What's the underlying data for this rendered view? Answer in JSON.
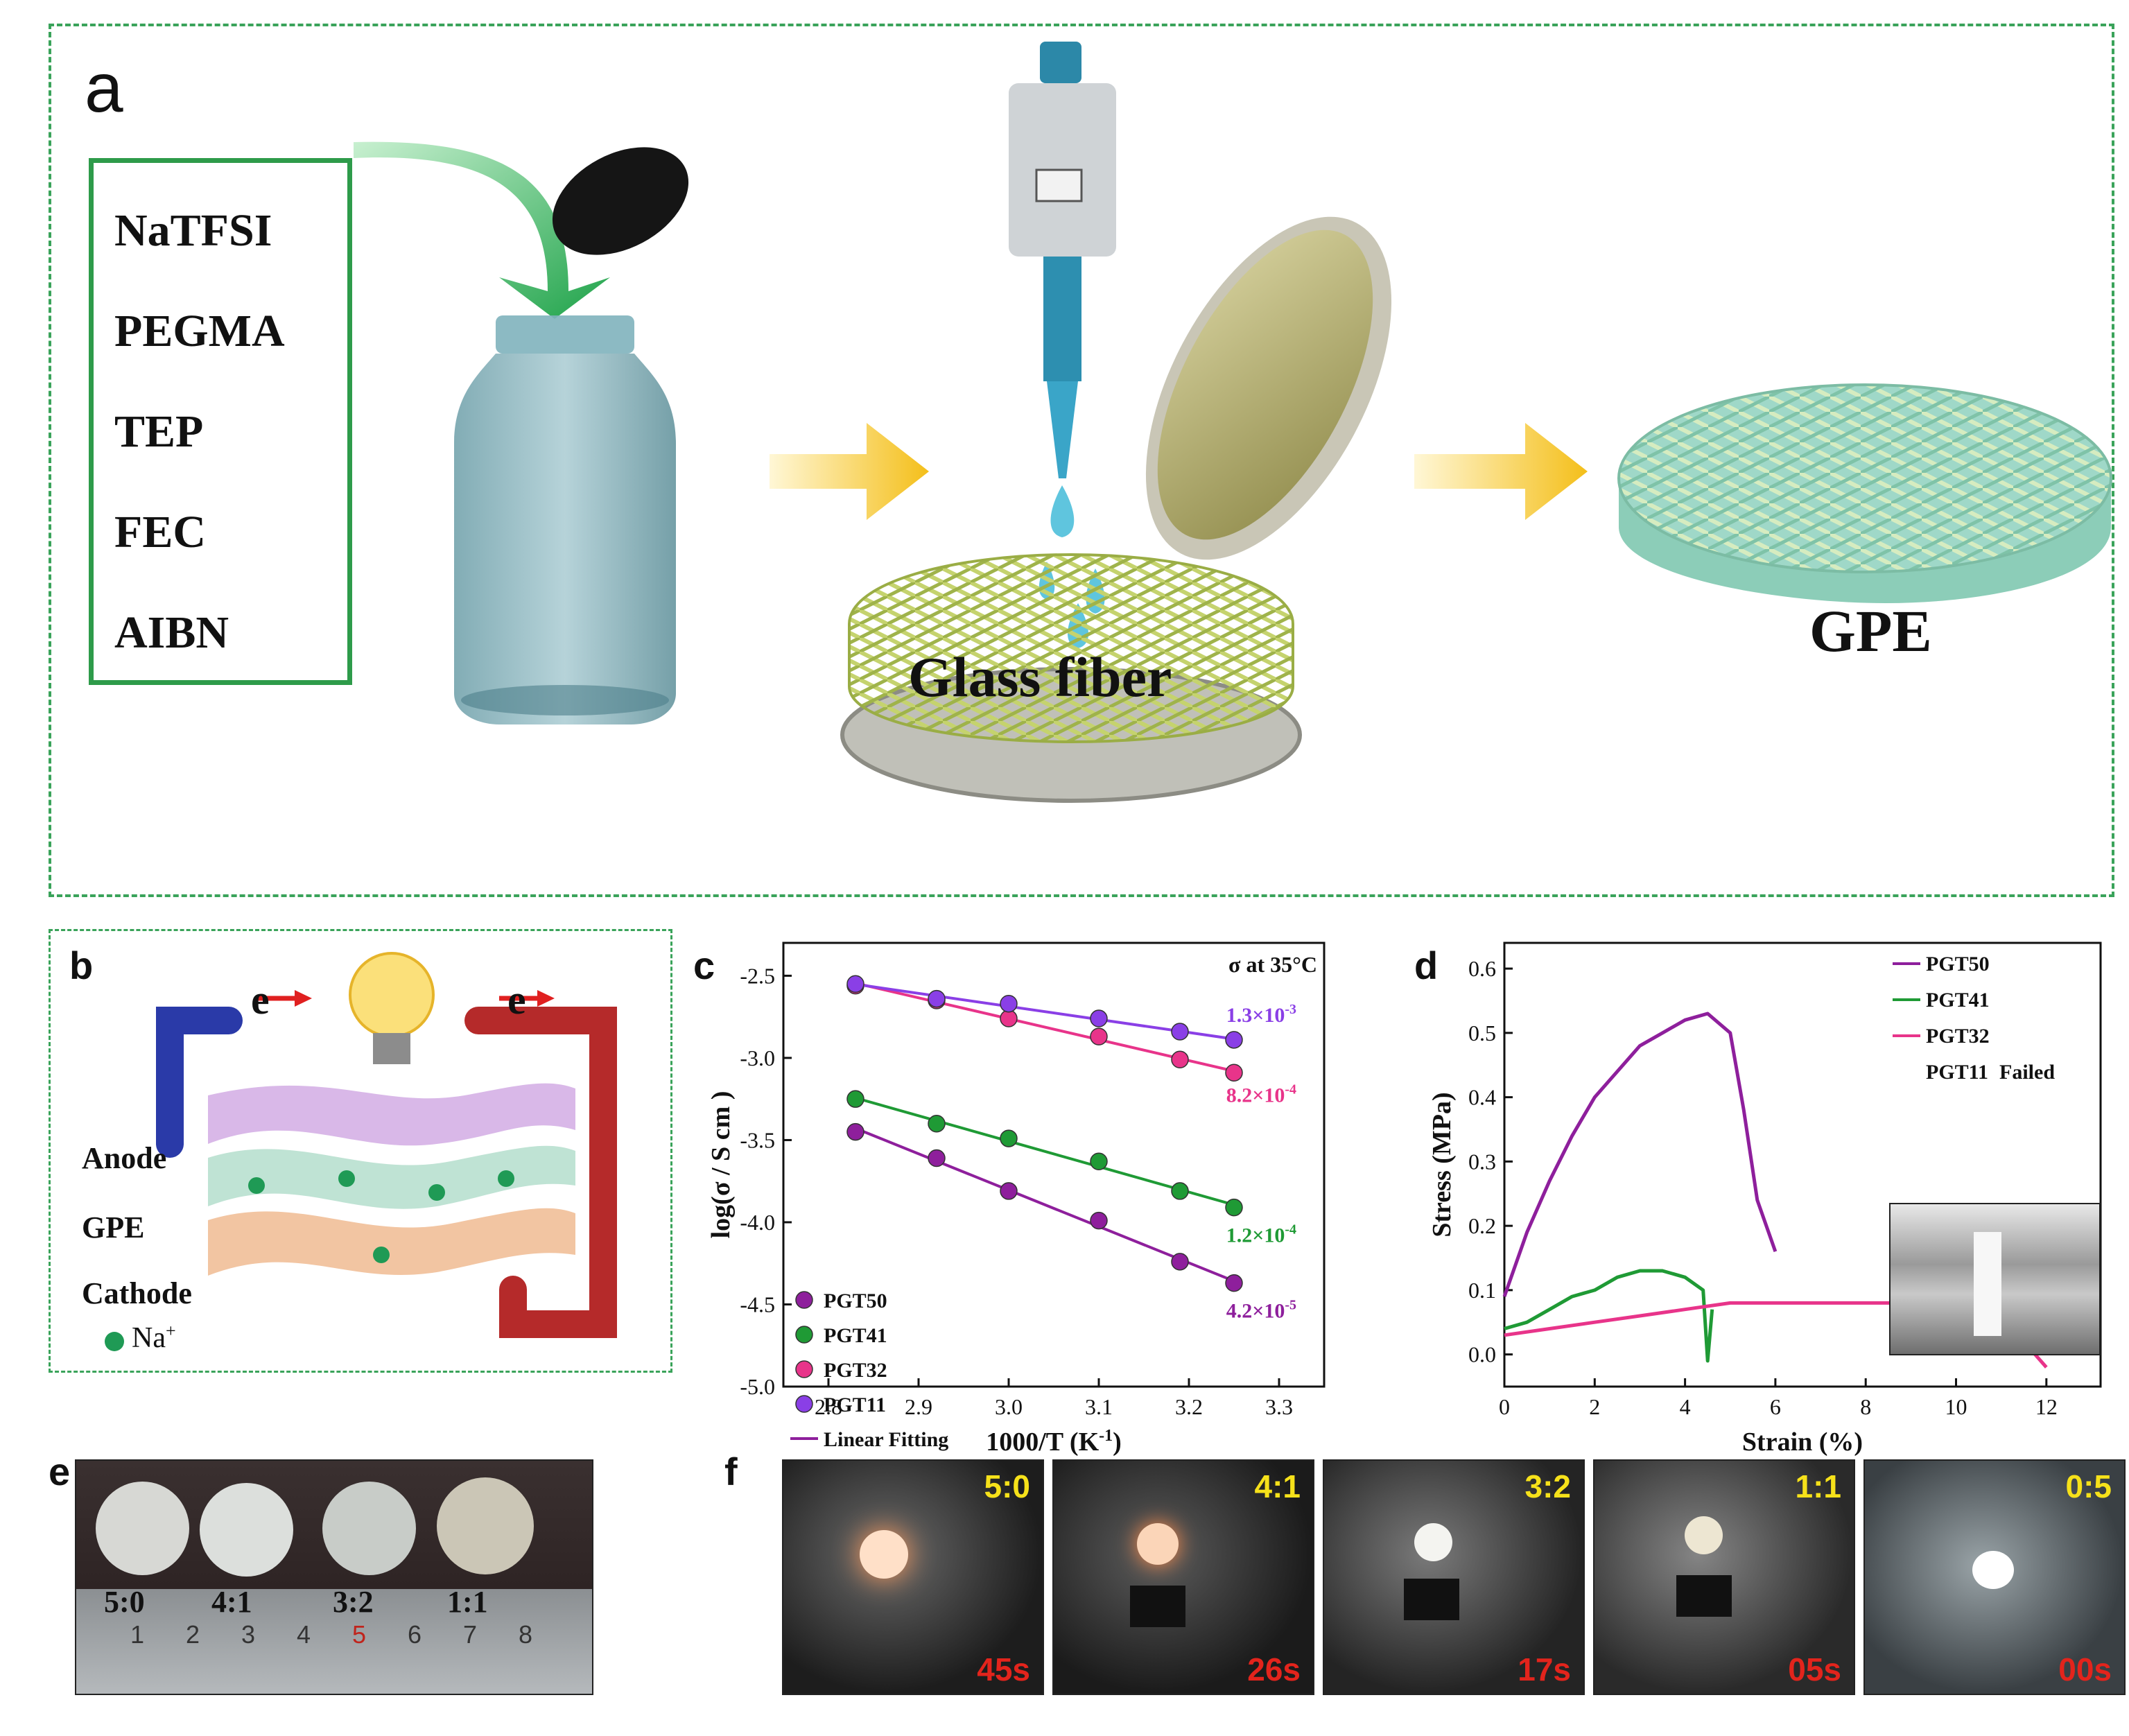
{
  "panel_a": {
    "letter": "a",
    "reagents": [
      "NaTFSI",
      "PEGMA",
      "TEP",
      "FEC",
      "AIBN"
    ],
    "glass_fiber_label": "Glass fiber",
    "gpe_label": "GPE"
  },
  "panel_b": {
    "letter": "b",
    "electron_label": "e",
    "anode_label": "Anode",
    "gpe_label": "GPE",
    "cathode_label": "Cathode",
    "ion_label": "Na",
    "ion_charge": "+"
  },
  "panel_c": {
    "letter": "c",
    "header": "σ at 35°C",
    "ylabel": "log(σ / S cm  )",
    "xlabel": "1000/T (K",
    "xlabel_sup": "-1",
    "xlabel_close": ")",
    "annotations": [
      {
        "base": "1.3×10",
        "exp": "-3"
      },
      {
        "base": "8.2×10",
        "exp": "-4"
      },
      {
        "base": "1.2×10",
        "exp": "-4"
      },
      {
        "base": "4.2×10",
        "exp": "-5"
      }
    ],
    "legend_fit": "Linear Fitting"
  },
  "panel_d": {
    "letter": "d",
    "ylabel": "Stress (MPa)",
    "xlabel": "Strain (%)",
    "failed_note": "Failed"
  },
  "panel_e": {
    "letter": "e",
    "ratios": [
      "5:0",
      "4:1",
      "3:2",
      "1:1"
    ],
    "ruler_numbers": [
      "1",
      "2",
      "3",
      "4",
      "5",
      "6",
      "7",
      "8"
    ]
  },
  "panel_f": {
    "letter": "f",
    "photos": [
      {
        "ratio": "5:0",
        "time": "45s"
      },
      {
        "ratio": "4:1",
        "time": "26s"
      },
      {
        "ratio": "3:2",
        "time": "17s"
      },
      {
        "ratio": "1:1",
        "time": "05s"
      },
      {
        "ratio": "0:5",
        "time": "00s"
      }
    ]
  },
  "colors": {
    "PGT50": "#8e1f9c",
    "PGT41": "#1f9a35",
    "PGT32": "#e8348a",
    "PGT11": "#8a3fe6",
    "frame_green": "#3aa35a"
  },
  "chart_data": [
    {
      "type": "scatter",
      "title": "σ at 35°C",
      "xlabel": "1000/T (K-1)",
      "ylabel": "log(σ / S cm  )",
      "xlim": [
        2.75,
        3.35
      ],
      "ylim": [
        -5.0,
        -2.3
      ],
      "xticks": [
        2.8,
        2.9,
        3.0,
        3.1,
        3.2,
        3.3
      ],
      "yticks": [
        -2.5,
        -3.0,
        -3.5,
        -4.0,
        -4.5,
        -5.0
      ],
      "legend_position": "bottom-left",
      "series": [
        {
          "name": "PGT50",
          "x": [
            2.83,
            2.92,
            3.0,
            3.1,
            3.19,
            3.25
          ],
          "y": [
            -3.45,
            -3.61,
            -3.81,
            -3.99,
            -4.24,
            -4.37
          ]
        },
        {
          "name": "PGT41",
          "x": [
            2.83,
            2.92,
            3.0,
            3.1,
            3.19,
            3.25
          ],
          "y": [
            -3.25,
            -3.4,
            -3.49,
            -3.63,
            -3.81,
            -3.91
          ]
        },
        {
          "name": "PGT32",
          "x": [
            2.83,
            2.92,
            3.0,
            3.1,
            3.19,
            3.25
          ],
          "y": [
            -2.56,
            -2.65,
            -2.76,
            -2.87,
            -3.01,
            -3.09
          ]
        },
        {
          "name": "PGT11",
          "x": [
            2.83,
            2.92,
            3.0,
            3.1,
            3.19,
            3.25
          ],
          "y": [
            -2.55,
            -2.64,
            -2.67,
            -2.76,
            -2.84,
            -2.89
          ]
        }
      ]
    },
    {
      "type": "line",
      "xlabel": "Strain (%)",
      "ylabel": "Stress (MPa)",
      "xlim": [
        0,
        13.2
      ],
      "ylim": [
        -0.05,
        0.64
      ],
      "xticks": [
        0,
        2,
        4,
        6,
        8,
        10,
        12
      ],
      "yticks": [
        0.0,
        0.1,
        0.2,
        0.3,
        0.4,
        0.5,
        0.6
      ],
      "legend_position": "top-right",
      "series": [
        {
          "name": "PGT50",
          "x": [
            0,
            0.5,
            1,
            1.5,
            2,
            2.5,
            3,
            3.5,
            4,
            4.5,
            5,
            5.3,
            5.6,
            6.0
          ],
          "y": [
            0.09,
            0.19,
            0.27,
            0.34,
            0.4,
            0.44,
            0.48,
            0.5,
            0.52,
            0.53,
            0.5,
            0.38,
            0.24,
            0.16
          ]
        },
        {
          "name": "PGT41",
          "x": [
            0,
            0.5,
            1,
            1.5,
            2,
            2.5,
            3,
            3.5,
            4,
            4.4,
            4.5,
            4.6
          ],
          "y": [
            0.04,
            0.05,
            0.07,
            0.09,
            0.1,
            0.12,
            0.13,
            0.13,
            0.12,
            0.1,
            -0.01,
            0.07
          ]
        },
        {
          "name": "PGT32",
          "x": [
            0,
            1,
            2,
            3,
            4,
            5,
            6,
            7,
            8,
            9,
            10,
            11,
            11.5,
            12
          ],
          "y": [
            0.03,
            0.04,
            0.05,
            0.06,
            0.07,
            0.08,
            0.08,
            0.08,
            0.08,
            0.08,
            0.07,
            0.05,
            0.02,
            -0.02
          ]
        },
        {
          "name": "PGT11",
          "x": [],
          "y": []
        }
      ]
    }
  ]
}
